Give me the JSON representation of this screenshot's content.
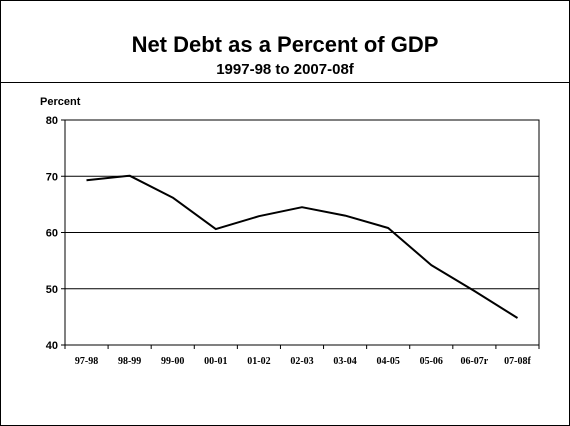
{
  "chart_data": {
    "type": "line",
    "title": "Net Debt as a Percent of GDP",
    "subtitle": "1997-98 to 2007-08f",
    "ylabel": "Percent",
    "xlabel": "",
    "categories": [
      "97-98",
      "98-99",
      "99-00",
      "00-01",
      "01-02",
      "02-03",
      "03-04",
      "04-05",
      "05-06",
      "06-07r",
      "07-08f"
    ],
    "series": [
      {
        "values": [
          69.3,
          70.1,
          66.2,
          60.6,
          62.9,
          64.5,
          63.0,
          60.8,
          54.2,
          49.6,
          44.8
        ]
      }
    ],
    "ylim": [
      40,
      80
    ],
    "yticks": [
      "40",
      "50",
      "60",
      "70",
      "80"
    ],
    "grid": "horizontal",
    "line_color": "#000000"
  }
}
